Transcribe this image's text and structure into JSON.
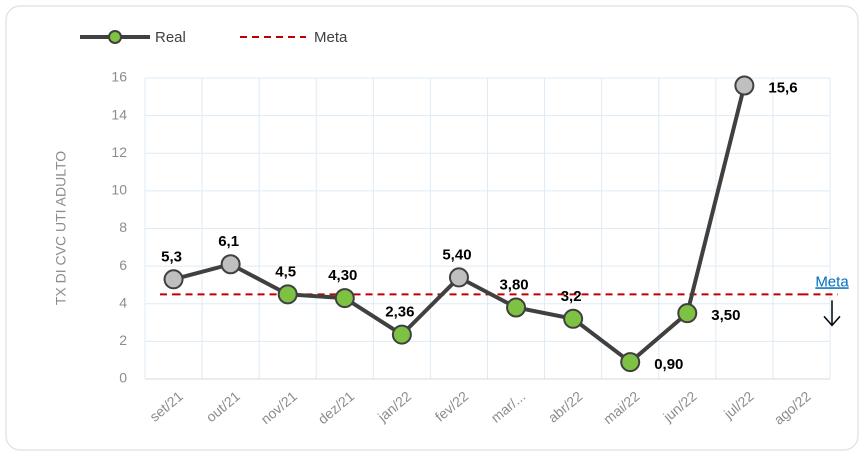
{
  "chart_data": {
    "type": "line",
    "categories": [
      "set/21",
      "out/21",
      "nov/21",
      "dez/21",
      "jan/22",
      "fev/22",
      "mar/...",
      "abr/22",
      "mai/22",
      "jun/22",
      "jul/22",
      "ago/22"
    ],
    "series": [
      {
        "name": "Real",
        "color": "#404040",
        "marker_colors": [
          "#bfbfbf",
          "#bfbfbf",
          "#7dc242",
          "#7dc242",
          "#7dc242",
          "#bfbfbf",
          "#7dc242",
          "#7dc242",
          "#7dc242",
          "#7dc242",
          "#bfbfbf",
          null
        ],
        "values": [
          5.3,
          6.1,
          4.5,
          4.3,
          2.36,
          5.4,
          3.8,
          3.2,
          0.9,
          3.5,
          15.6,
          null
        ],
        "value_labels": [
          "5,3",
          "6,1",
          "4,5",
          "4,30",
          "2,36",
          "5,40",
          "3,80",
          "3,2",
          "0,90",
          "3,50",
          "15,6",
          null
        ]
      },
      {
        "name": "Meta",
        "color": "#c00000",
        "dashed": true,
        "values": [
          4.5,
          4.5,
          4.5,
          4.5,
          4.5,
          4.5,
          4.5,
          4.5,
          4.5,
          4.5,
          4.5,
          4.5
        ]
      }
    ],
    "y_label": "TX DI CVC UTI ADULTO",
    "annotation": "Meta",
    "ylim": [
      0,
      16
    ],
    "yticks": [
      0,
      2,
      4,
      6,
      8,
      10,
      12,
      14,
      16
    ],
    "grid": true
  }
}
